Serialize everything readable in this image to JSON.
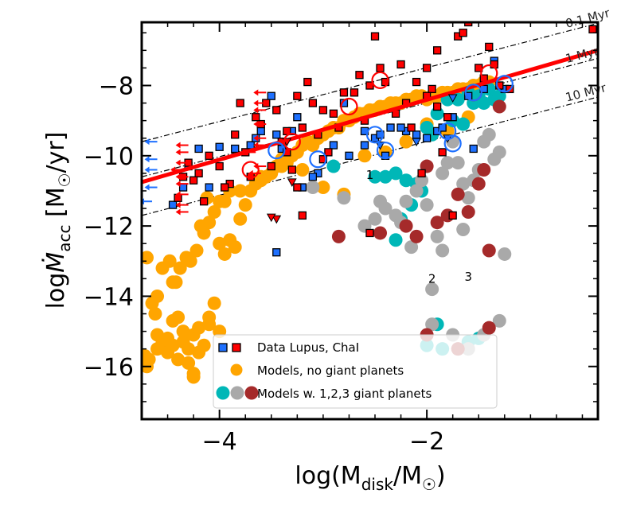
{
  "chart_data": {
    "type": "scatter",
    "xlabel": "log(M_disk/M_☉)",
    "ylabel": "logṀ_acc [M_☉/yr]",
    "xlim": [
      -4.75,
      -0.35
    ],
    "ylim": [
      -17.5,
      -6.2
    ],
    "xticks": [
      -4,
      -2
    ],
    "xtick_labels": [
      "−4",
      "−2"
    ],
    "yticks": [
      -16,
      -14,
      -12,
      -10,
      -8
    ],
    "ytick_labels": [
      "−16",
      "−14",
      "−12",
      "−10",
      "−8"
    ],
    "grid": false,
    "legend_position": "lower center",
    "legend": [
      {
        "label": "Data Lupus, ChaI",
        "markers": [
          "blue-square",
          "red-square"
        ]
      },
      {
        "label": "Models, no giant planets",
        "markers": [
          "orange-circle"
        ]
      },
      {
        "label": "Models w. 1,2,3 giant planets",
        "markers": [
          "teal-circle",
          "gray-circle",
          "brown-circle"
        ]
      }
    ],
    "colors": {
      "orange": "#ffa500",
      "teal": "#00b7b7",
      "gray": "#a9a9a9",
      "brown": "#a52a2a",
      "red": "#ff0000",
      "blue": "#1e70ff",
      "fit_line": "#ff0000"
    },
    "isochrones": [
      {
        "label": "0.1 Myr",
        "x": [
          -4.75,
          -0.9
        ],
        "y": [
          -9.6,
          -6.65
        ]
      },
      {
        "label": "1 Myr",
        "x": [
          -4.75,
          -0.9
        ],
        "y": [
          -10.6,
          -7.65
        ]
      },
      {
        "label": "10 Myr",
        "x": [
          -4.75,
          -0.9
        ],
        "y": [
          -11.7,
          -8.75
        ]
      }
    ],
    "fit_line": {
      "x": [
        -4.75,
        -0.35
      ],
      "y": [
        -10.75,
        -7.0
      ]
    },
    "annotations": [
      {
        "text": "1",
        "x": -2.55,
        "y": -10.55
      },
      {
        "text": "2",
        "x": -1.95,
        "y": -13.5
      },
      {
        "text": "3",
        "x": -1.6,
        "y": -13.45
      }
    ],
    "series": [
      {
        "name": "Data Lupus, ChaI (blue)",
        "marker": "square",
        "color": "#1e70ff",
        "x": [
          -4.2,
          -4.0,
          -3.85,
          -3.7,
          -3.6,
          -3.45,
          -3.4,
          -3.3,
          -3.2,
          -3.05,
          -2.9,
          -2.75,
          -2.6,
          -2.5,
          -2.45,
          -2.35,
          -2.2,
          -2.1,
          -2.0,
          -1.9,
          -1.85,
          -1.75,
          -1.6,
          -1.45,
          -1.35,
          -1.25,
          -4.3,
          -4.1,
          -3.65,
          -3.5,
          -3.25,
          -3.1,
          -2.8,
          -2.6,
          -2.4,
          -2.25,
          -3.45,
          -1.55,
          -4.35,
          -4.45
        ],
        "y": [
          -9.8,
          -9.75,
          -9.8,
          -9.7,
          -9.3,
          -9.4,
          -9.8,
          -9.3,
          -10.9,
          -10.5,
          -9.7,
          -10.0,
          -9.3,
          -9.5,
          -9.4,
          -9.2,
          -9.3,
          -9.4,
          -9.5,
          -9.3,
          -9.2,
          -8.9,
          -8.3,
          -8.1,
          -7.3,
          -8.1,
          -10.3,
          -10.9,
          -9.5,
          -8.3,
          -8.9,
          -10.6,
          -8.5,
          -9.7,
          -10.0,
          -9.2,
          -12.75,
          -9.8,
          -10.9,
          -11.4
        ]
      },
      {
        "name": "Data Lupus, ChaI (red)",
        "marker": "square",
        "color": "#ff0000",
        "x": [
          -4.3,
          -4.2,
          -4.1,
          -4.0,
          -3.9,
          -3.8,
          -3.75,
          -3.7,
          -3.6,
          -3.55,
          -3.5,
          -3.45,
          -3.4,
          -3.35,
          -3.3,
          -3.25,
          -3.2,
          -3.15,
          -3.1,
          -3.05,
          -3.0,
          -2.95,
          -2.9,
          -2.85,
          -2.8,
          -2.7,
          -2.65,
          -2.55,
          -2.5,
          -2.45,
          -2.4,
          -2.3,
          -2.25,
          -2.2,
          -2.15,
          -2.1,
          -2.0,
          -1.95,
          -1.9,
          -1.8,
          -1.7,
          -1.65,
          -1.6,
          -1.5,
          -1.45,
          -1.4,
          -1.35,
          -1.3,
          -1.2,
          -0.4,
          -4.25,
          -4.15,
          -3.95,
          -3.85,
          -3.65,
          -3.35,
          -3.25,
          -2.6,
          -2.05,
          -2.55,
          -1.75,
          -1.85,
          -1.9,
          -2.0,
          -4.4,
          -4.35,
          -3.2,
          -3.0
        ],
        "y": [
          -10.2,
          -10.5,
          -10.0,
          -10.3,
          -10.8,
          -8.5,
          -9.9,
          -10.6,
          -9.1,
          -8.5,
          -10.3,
          -8.7,
          -9.6,
          -9.3,
          -10.4,
          -8.3,
          -9.2,
          -7.9,
          -8.5,
          -9.4,
          -8.7,
          -9.9,
          -8.8,
          -9.2,
          -8.2,
          -8.2,
          -7.7,
          -8.0,
          -6.6,
          -7.5,
          -7.9,
          -8.8,
          -7.4,
          -8.5,
          -9.2,
          -7.9,
          -7.5,
          -8.1,
          -7.0,
          -8.9,
          -6.6,
          -6.5,
          -6.2,
          -7.5,
          -7.8,
          -6.9,
          -7.4,
          -8.0,
          -8.1,
          -6.4,
          -10.7,
          -11.3,
          -10.9,
          -9.4,
          -8.9,
          -9.9,
          -10.9,
          -9.0,
          -10.5,
          -12.2,
          -11.7,
          -9.9,
          -8.6,
          -8.3,
          -11.2,
          -10.6,
          -11.7,
          -10.1
        ]
      },
      {
        "name": "Models, no giant planets",
        "marker": "circle",
        "color": "#ffa500",
        "x": [
          -4.7,
          -4.65,
          -4.6,
          -4.55,
          -4.5,
          -4.45,
          -4.4,
          -4.35,
          -4.3,
          -4.25,
          -4.2,
          -4.15,
          -4.1,
          -4.05,
          -4.0,
          -3.95,
          -3.9,
          -3.85,
          -3.8,
          -3.75,
          -3.7,
          -3.65,
          -3.6,
          -3.55,
          -3.5,
          -3.45,
          -3.4,
          -3.35,
          -3.3,
          -3.25,
          -3.2,
          -3.15,
          -3.1,
          -3.05,
          -3.0,
          -2.95,
          -2.9,
          -2.85,
          -2.8,
          -2.75,
          -2.7,
          -2.65,
          -2.6,
          -2.55,
          -2.5,
          -2.45,
          -2.4,
          -2.35,
          -2.3,
          -2.25,
          -2.2,
          -2.15,
          -2.1,
          -2.05,
          -2.0,
          -1.95,
          -1.9,
          -1.85,
          -1.8,
          -1.75,
          -1.7,
          -1.65,
          -1.6,
          -1.55,
          -1.5,
          -1.45,
          -1.4,
          -4.75,
          -4.7,
          -4.6,
          -4.5,
          -4.45,
          -4.4,
          -4.35,
          -4.3,
          -4.25,
          -4.2,
          -4.15,
          -4.1,
          -4.05,
          -4.0,
          -3.9,
          -4.72,
          -4.68,
          -4.62,
          -4.55,
          -4.48,
          -4.42,
          -4.38,
          -4.32,
          -4.28,
          -4.22,
          -4.18,
          -4.12,
          -3.95,
          -3.8,
          -3.6,
          -3.4,
          -3.2,
          -3.0,
          -2.8,
          -2.6,
          -2.4,
          -2.2,
          -2.0,
          -1.8,
          -1.6,
          -4.0,
          -4.1,
          -4.25,
          -4.45,
          -4.6
        ],
        "y": [
          -12.9,
          -14.2,
          -15.1,
          -15.3,
          -15.6,
          -13.6,
          -14.6,
          -15.3,
          -15.5,
          -15.1,
          -14.9,
          -15.4,
          -14.8,
          -14.2,
          -12.5,
          -12.8,
          -12.4,
          -12.6,
          -11.8,
          -11.4,
          -11.0,
          -10.8,
          -10.7,
          -10.6,
          -10.5,
          -10.3,
          -10.3,
          -10.2,
          -10.0,
          -9.9,
          -9.7,
          -9.6,
          -9.7,
          -9.5,
          -9.4,
          -9.3,
          -9.2,
          -9.2,
          -9.0,
          -9.0,
          -8.9,
          -8.8,
          -8.8,
          -8.7,
          -8.7,
          -8.6,
          -8.6,
          -8.5,
          -8.5,
          -8.5,
          -8.4,
          -8.4,
          -8.3,
          -8.3,
          -8.4,
          -8.3,
          -8.3,
          -8.2,
          -8.2,
          -8.2,
          -8.1,
          -8.1,
          -8.1,
          -8.0,
          -8.0,
          -7.9,
          -7.9,
          -15.9,
          -16.0,
          -15.5,
          -15.2,
          -14.7,
          -15.8,
          -15.0,
          -15.9,
          -16.2,
          -15.6,
          -12.2,
          -11.9,
          -11.6,
          -11.3,
          -11.0,
          -15.7,
          -15.8,
          -14.5,
          -13.2,
          -13.0,
          -13.6,
          -13.2,
          -12.9,
          -13.0,
          -12.7,
          -12.0,
          -11.2,
          -11.3,
          -11.0,
          -10.6,
          -10.1,
          -10.4,
          -10.9,
          -11.1,
          -10.0,
          -9.9,
          -9.6,
          -9.1,
          -9.3,
          -8.9,
          -15.0,
          -14.6,
          -16.3,
          -15.4,
          -14.0
        ]
      },
      {
        "name": "Models w. 1 giant planet",
        "marker": "circle",
        "color": "#00b7b7",
        "x": [
          -2.9,
          -2.5,
          -2.4,
          -2.3,
          -2.2,
          -2.1,
          -2.0,
          -1.95,
          -1.9,
          -1.8,
          -1.7,
          -1.6,
          -1.55,
          -1.5,
          -1.45,
          -1.4,
          -1.35,
          -1.3,
          -1.75,
          -1.65,
          -2.15,
          -2.05,
          -2.3,
          -1.9,
          -2.0,
          -1.85,
          -2.25,
          -1.6,
          -1.5
        ],
        "y": [
          -10.3,
          -10.6,
          -10.6,
          -10.5,
          -10.7,
          -10.8,
          -9.2,
          -9.4,
          -8.8,
          -8.4,
          -8.4,
          -8.2,
          -8.5,
          -8.3,
          -8.5,
          -8.1,
          -8.4,
          -8.3,
          -9.0,
          -9.1,
          -11.4,
          -11.0,
          -12.4,
          -14.8,
          -15.4,
          -15.5,
          -11.8,
          -15.3,
          -15.2
        ]
      },
      {
        "name": "Models w. 2 giant planets",
        "marker": "circle",
        "color": "#a9a9a9",
        "x": [
          -3.1,
          -2.8,
          -2.6,
          -2.5,
          -2.4,
          -2.3,
          -2.2,
          -2.1,
          -2.05,
          -2.0,
          -1.95,
          -1.9,
          -1.85,
          -1.8,
          -1.75,
          -1.7,
          -1.65,
          -1.6,
          -1.55,
          -1.5,
          -1.45,
          -1.4,
          -1.35,
          -1.3,
          -1.25,
          -1.95,
          -1.75,
          -1.6,
          -1.45,
          -1.3,
          -2.25,
          -2.45,
          -2.15,
          -1.85,
          -1.65
        ],
        "y": [
          -10.9,
          -11.2,
          -12.0,
          -11.8,
          -11.5,
          -11.7,
          -11.3,
          -11.0,
          -10.7,
          -11.4,
          -13.8,
          -12.3,
          -10.5,
          -10.2,
          -9.6,
          -10.2,
          -10.8,
          -11.2,
          -10.7,
          -10.4,
          -9.6,
          -9.4,
          -10.1,
          -9.9,
          -12.8,
          -14.8,
          -15.1,
          -15.5,
          -15.1,
          -14.7,
          -11.9,
          -11.3,
          -12.6,
          -12.7,
          -12.1
        ]
      },
      {
        "name": "Models w. 3 giant planets",
        "marker": "circle",
        "color": "#a52a2a",
        "x": [
          -2.85,
          -2.45,
          -2.2,
          -2.1,
          -2.0,
          -1.9,
          -1.8,
          -1.7,
          -1.6,
          -1.5,
          -1.45,
          -1.4,
          -1.3,
          -2.0,
          -1.7,
          -1.4
        ],
        "y": [
          -12.3,
          -12.2,
          -12.0,
          -12.3,
          -10.3,
          -11.9,
          -11.7,
          -11.1,
          -11.6,
          -10.8,
          -10.4,
          -12.7,
          -8.6,
          -15.1,
          -15.5,
          -14.9
        ]
      }
    ],
    "upper_limits": {
      "color_red": "#ff0000",
      "color_blue": "#1e70ff",
      "red_arrows": [
        {
          "x": -3.55,
          "y": -8.2
        },
        {
          "x": -3.55,
          "y": -8.5
        },
        {
          "x": -3.55,
          "y": -8.7
        },
        {
          "x": -3.55,
          "y": -9.1
        },
        {
          "x": -3.55,
          "y": -9.5
        },
        {
          "x": -3.55,
          "y": -9.7
        },
        {
          "x": -3.65,
          "y": -9.9
        },
        {
          "x": -3.55,
          "y": -10.3
        },
        {
          "x": -3.6,
          "y": -10.5
        },
        {
          "x": -4.3,
          "y": -9.7
        },
        {
          "x": -4.3,
          "y": -9.9
        },
        {
          "x": -4.3,
          "y": -10.2
        },
        {
          "x": -4.35,
          "y": -10.4
        },
        {
          "x": -4.3,
          "y": -10.6
        },
        {
          "x": -4.3,
          "y": -10.8
        },
        {
          "x": -4.3,
          "y": -11.1
        },
        {
          "x": -4.3,
          "y": -11.4
        },
        {
          "x": -4.3,
          "y": -11.6
        }
      ],
      "blue_arrows": [
        {
          "x": -4.6,
          "y": -9.6
        },
        {
          "x": -4.6,
          "y": -10.1
        },
        {
          "x": -4.6,
          "y": -10.4
        },
        {
          "x": -4.6,
          "y": -10.9
        },
        {
          "x": -4.65,
          "y": -11.3
        }
      ],
      "red_triangles_down": [
        {
          "x": -3.35,
          "y": -9.6
        },
        {
          "x": -3.45,
          "y": -11.8
        },
        {
          "x": -3.5,
          "y": -11.75
        },
        {
          "x": -3.3,
          "y": -10.75
        }
      ],
      "blue_triangles_down": [
        {
          "x": -2.45,
          "y": -9.7
        },
        {
          "x": -1.8,
          "y": -9.5
        },
        {
          "x": -1.75,
          "y": -8.35
        },
        {
          "x": -2.1,
          "y": -9.6
        }
      ]
    },
    "highlight_circles": [
      {
        "x": -3.7,
        "y": -10.4,
        "color": "#ff0000"
      },
      {
        "x": -3.3,
        "y": -9.6,
        "color": "#ff0000"
      },
      {
        "x": -2.75,
        "y": -8.6,
        "color": "#ff0000"
      },
      {
        "x": -2.45,
        "y": -7.85,
        "color": "#ff0000"
      },
      {
        "x": -1.4,
        "y": -7.65,
        "color": "#ff0000"
      },
      {
        "x": -1.55,
        "y": -8.2,
        "color": "#ff0000"
      },
      {
        "x": -3.45,
        "y": -9.85,
        "color": "#1e70ff"
      },
      {
        "x": -3.05,
        "y": -10.1,
        "color": "#1e70ff"
      },
      {
        "x": -2.5,
        "y": -9.4,
        "color": "#1e70ff"
      },
      {
        "x": -2.4,
        "y": -9.85,
        "color": "#1e70ff"
      },
      {
        "x": -1.75,
        "y": -9.65,
        "color": "#1e70ff"
      },
      {
        "x": -1.8,
        "y": -9.3,
        "color": "#1e70ff"
      },
      {
        "x": -1.55,
        "y": -8.2,
        "color": "#1e70ff"
      },
      {
        "x": -1.25,
        "y": -7.95,
        "color": "#1e70ff"
      }
    ]
  }
}
